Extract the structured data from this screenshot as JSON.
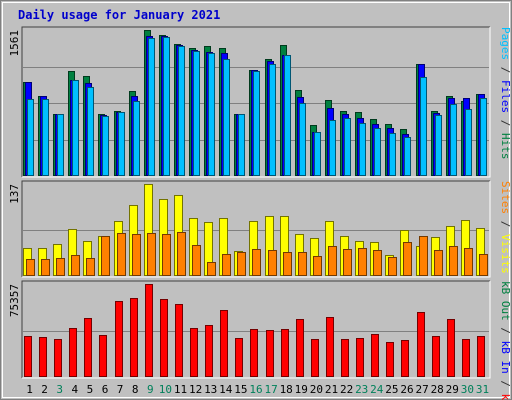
{
  "chart_data": {
    "type": "bar",
    "title": "Daily usage for January 2021",
    "categories": [
      "1",
      "2",
      "3",
      "4",
      "5",
      "6",
      "7",
      "8",
      "9",
      "10",
      "11",
      "12",
      "13",
      "14",
      "15",
      "16",
      "17",
      "18",
      "19",
      "20",
      "21",
      "22",
      "23",
      "24",
      "25",
      "26",
      "27",
      "28",
      "29",
      "30",
      "31"
    ],
    "weekend_days": [
      "3",
      "9",
      "10",
      "16",
      "17",
      "23",
      "24",
      "30",
      "31"
    ],
    "panels": [
      {
        "id": "top",
        "ymax_label": "1561",
        "ylim": [
          0,
          1561
        ],
        "side_labels": [
          {
            "text": "Hits",
            "color": "#008040"
          },
          {
            "text": " / ",
            "color": "#333333"
          },
          {
            "text": "Files",
            "color": "#0000ff"
          },
          {
            "text": " / ",
            "color": "#333333"
          },
          {
            "text": "Pages",
            "color": "#00c0ff"
          }
        ],
        "series": [
          {
            "name": "Hits",
            "color": "#008040",
            "values": [
              1010,
              850,
              660,
              1120,
              1070,
              660,
              690,
              910,
              1561,
              1510,
              1410,
              1370,
              1390,
              1370,
              660,
              1130,
              1250,
              1400,
              920,
              550,
              810,
              700,
              680,
              610,
              560,
              500,
              1200,
              700,
              850,
              800,
              880
            ]
          },
          {
            "name": "Files",
            "color": "#0000ff",
            "values": [
              1010,
              850,
              660,
              1030,
              990,
              650,
              680,
              850,
              1500,
              1500,
              1400,
              1350,
              1330,
              1320,
              660,
              1130,
              1230,
              1290,
              840,
              470,
              730,
              660,
              620,
              560,
              510,
              450,
              1200,
              670,
              830,
              830,
              880
            ]
          },
          {
            "name": "Pages",
            "color": "#00c0ff",
            "values": [
              820,
              820,
              660,
              1030,
              950,
              640,
              680,
              800,
              1480,
              1490,
              1390,
              1340,
              1320,
              1250,
              660,
              1120,
              1200,
              1290,
              780,
              470,
              600,
              620,
              570,
              510,
              460,
              420,
              1060,
              650,
              770,
              720,
              830
            ]
          }
        ]
      },
      {
        "id": "middle",
        "ymax_label": "137",
        "ylim": [
          0,
          137
        ],
        "side_labels": [
          {
            "text": "Visits",
            "color": "#ffff00"
          },
          {
            "text": " / ",
            "color": "#333333"
          },
          {
            "text": "Sites",
            "color": "#ff8000"
          }
        ],
        "series": [
          {
            "name": "Visits",
            "color": "#ffff00",
            "values": [
              42,
              42,
              47,
              70,
              52,
              60,
              82,
              106,
              137,
              115,
              120,
              86,
              80,
              87,
              37,
              82,
              90,
              90,
              62,
              57,
              82,
              60,
              52,
              50,
              32,
              68,
              45,
              58,
              75,
              84,
              72
            ]
          },
          {
            "name": "Sites",
            "color": "#ff8000",
            "values": [
              26,
              26,
              27,
              31,
              27,
              59,
              64,
              62,
              64,
              63,
              66,
              46,
              21,
              33,
              35,
              40,
              39,
              35,
              36,
              30,
              44,
              40,
              42,
              38,
              29,
              51,
              60,
              39,
              45,
              42,
              33
            ]
          }
        ]
      },
      {
        "id": "bottom",
        "ymax_label": "75357",
        "ylim": [
          0,
          75357
        ],
        "side_labels": [
          {
            "text": "kB F",
            "color": "#ff0000"
          },
          {
            "text": " / ",
            "color": "#333333"
          },
          {
            "text": "kB In",
            "color": "#0000ff"
          },
          {
            "text": " / ",
            "color": "#333333"
          },
          {
            "text": "kB Out",
            "color": "#008040"
          }
        ],
        "series": [
          {
            "name": "kB F",
            "color": "#ff0000",
            "values": [
              33000,
              32500,
              30500,
              40000,
              48000,
              34000,
              61500,
              64000,
              75357,
              63000,
              59500,
              40000,
              42500,
              54000,
              32000,
              38500,
              38000,
              39000,
              47000,
              31000,
              49000,
              31000,
              31500,
              35000,
              28000,
              30000,
              53000,
              33000,
              47000,
              31000,
              33500
            ]
          }
        ]
      }
    ]
  }
}
